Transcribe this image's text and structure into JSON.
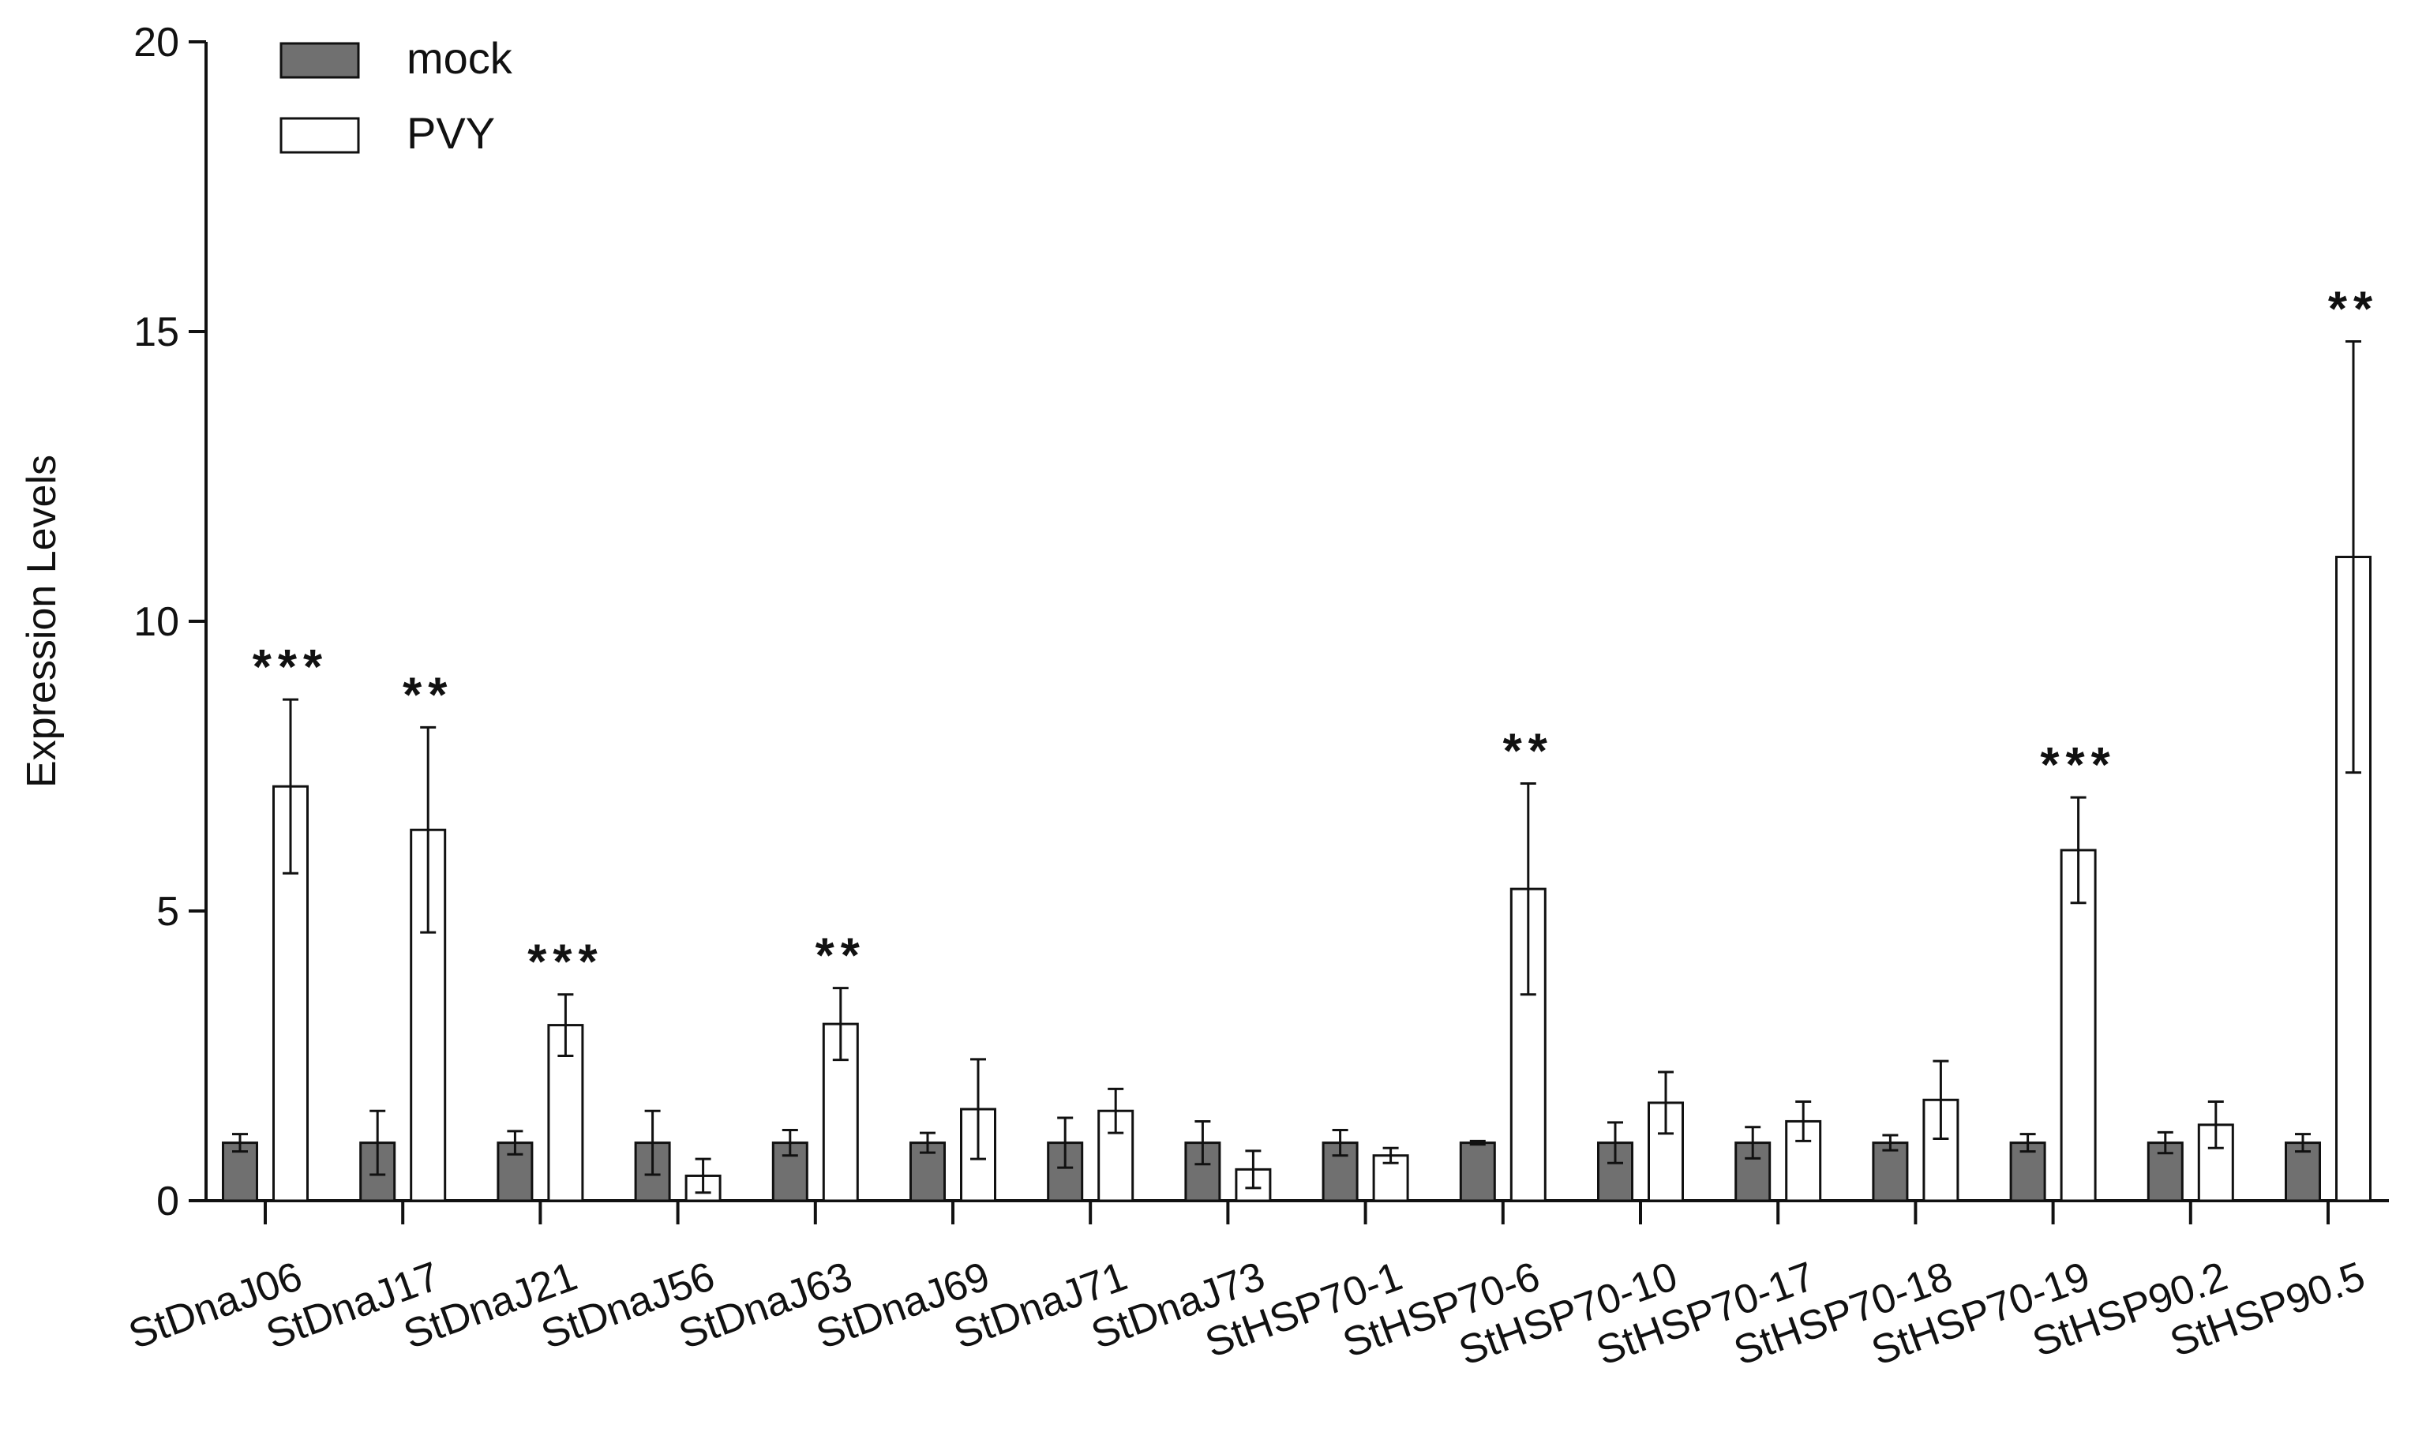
{
  "chart_data": {
    "type": "bar",
    "y_label": "Expression  Levels",
    "categories": [
      "StDnaJ06",
      "StDnaJ17",
      "StDnaJ21",
      "StDnaJ56",
      "StDnaJ63",
      "StDnaJ69",
      "StDnaJ71",
      "StDnaJ73",
      "StHSP70-1",
      "StHSP70-6",
      "StHSP70-10",
      "StHSP70-17",
      "StHSP70-18",
      "StHSP70-19",
      "StHSP90.2",
      "StHSP90.5"
    ],
    "series": [
      {
        "name": "mock",
        "color": "#707070",
        "values": [
          1,
          1,
          1,
          1,
          1,
          1,
          1,
          1,
          1,
          1,
          1,
          1,
          1,
          1,
          1,
          1
        ],
        "errors": [
          0.15,
          0.55,
          0.2,
          0.55,
          0.22,
          0.17,
          0.43,
          0.37,
          0.22,
          0.03,
          0.35,
          0.27,
          0.13,
          0.15,
          0.18,
          0.15
        ]
      },
      {
        "name": "PVY",
        "color": "#ffffff",
        "values": [
          7.15,
          6.4,
          3.03,
          0.43,
          3.05,
          1.58,
          1.55,
          0.54,
          0.78,
          5.38,
          1.69,
          1.37,
          1.74,
          6.05,
          1.31,
          11.11
        ],
        "errors": [
          1.5,
          1.77,
          0.53,
          0.29,
          0.62,
          0.86,
          0.38,
          0.32,
          0.13,
          1.82,
          0.53,
          0.34,
          0.67,
          0.91,
          0.4,
          3.72
        ]
      }
    ],
    "annotations": [
      "***",
      "**",
      "***",
      null,
      "**",
      null,
      null,
      null,
      null,
      "**",
      null,
      null,
      null,
      "***",
      null,
      "**"
    ],
    "ylim": [
      0,
      20
    ],
    "yticks": [
      0,
      5,
      10,
      15,
      20
    ],
    "legend": "upper left"
  }
}
